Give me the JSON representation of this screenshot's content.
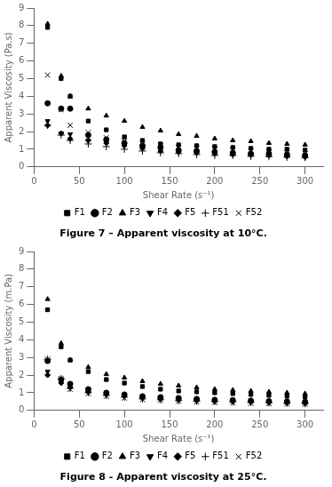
{
  "chart_data": [
    {
      "type": "scatter",
      "title": "Figure 7 – Apparent viscosity at 10°C.",
      "x_label": "Shear Rate (s⁻¹)",
      "y_label": "Apparent Viscosity (Pa.s)",
      "xlim": [
        0,
        320
      ],
      "xticks": [
        0,
        50,
        100,
        150,
        200,
        250,
        300
      ],
      "ylim": [
        0,
        9
      ],
      "yticks": [
        0,
        1,
        2,
        3,
        4,
        5,
        6,
        7,
        8,
        9
      ],
      "grid": false,
      "legend": "bottom",
      "x": [
        15,
        30,
        40,
        60,
        80,
        100,
        120,
        140,
        160,
        180,
        200,
        220,
        240,
        260,
        280,
        300
      ],
      "series": [
        {
          "name": "F1",
          "color": "#000000",
          "marker": "square",
          "values": [
            7.9,
            5.0,
            4.0,
            2.6,
            2.1,
            1.7,
            1.5,
            1.3,
            1.25,
            1.2,
            1.15,
            1.1,
            1.05,
            1.0,
            1.0,
            0.95
          ]
        },
        {
          "name": "F2",
          "color": "#000000",
          "marker": "circle",
          "values": [
            3.6,
            3.3,
            3.3,
            1.8,
            1.55,
            1.35,
            1.2,
            1.1,
            0.95,
            0.9,
            0.85,
            0.8,
            0.75,
            0.75,
            0.7,
            0.65
          ]
        },
        {
          "name": "F3",
          "color": "#000000",
          "marker": "triangle_up",
          "values": [
            8.1,
            5.15,
            4.0,
            3.3,
            2.9,
            2.6,
            2.25,
            2.05,
            1.85,
            1.75,
            1.6,
            1.5,
            1.45,
            1.35,
            1.3,
            1.25
          ]
        },
        {
          "name": "F4",
          "color": "#000000",
          "marker": "triangle_down",
          "values": [
            2.6,
            1.9,
            1.85,
            1.5,
            1.4,
            1.25,
            1.1,
            1.0,
            0.9,
            0.85,
            0.8,
            0.75,
            0.7,
            0.65,
            0.65,
            0.6
          ]
        },
        {
          "name": "F5",
          "color": "#000000",
          "marker": "diamond",
          "values": [
            2.35,
            1.9,
            1.6,
            1.5,
            1.35,
            1.2,
            1.05,
            0.9,
            0.85,
            0.8,
            0.75,
            0.7,
            0.68,
            0.65,
            0.6,
            0.55
          ]
        },
        {
          "name": "F51",
          "color": "#000000",
          "marker": "plus",
          "values": [
            2.35,
            1.8,
            1.5,
            1.3,
            1.15,
            1.0,
            0.9,
            0.8,
            0.75,
            0.7,
            0.65,
            0.65,
            0.6,
            0.58,
            0.55,
            0.53
          ]
        },
        {
          "name": "F52",
          "color": "#000000",
          "marker": "x",
          "values": [
            5.2,
            3.25,
            2.35,
            1.95,
            1.65,
            1.45,
            1.3,
            1.2,
            1.1,
            1.05,
            1.0,
            0.95,
            0.9,
            0.85,
            0.8,
            0.75
          ]
        }
      ]
    },
    {
      "type": "scatter",
      "title": "Figure 8 - Apparent viscosity at 25°C.",
      "x_label": "Shear Rate (s⁻¹)",
      "y_label": "Apparent Viscosity (m.Pa)",
      "xlim": [
        0,
        320
      ],
      "xticks": [
        0,
        50,
        100,
        150,
        200,
        250,
        300
      ],
      "ylim": [
        0,
        9
      ],
      "yticks": [
        0,
        1,
        2,
        3,
        4,
        5,
        6,
        7,
        8,
        9
      ],
      "grid": false,
      "legend": "bottom",
      "x": [
        15,
        30,
        40,
        60,
        80,
        100,
        120,
        140,
        160,
        180,
        200,
        220,
        240,
        260,
        280,
        300
      ],
      "series": [
        {
          "name": "F1",
          "color": "#000000",
          "marker": "square",
          "values": [
            5.7,
            3.6,
            2.85,
            2.2,
            1.75,
            1.55,
            1.35,
            1.2,
            1.1,
            1.05,
            1.0,
            0.95,
            0.9,
            0.85,
            0.8,
            0.75
          ]
        },
        {
          "name": "F2",
          "color": "#000000",
          "marker": "circle",
          "values": [
            2.8,
            1.75,
            1.5,
            1.2,
            1.0,
            0.9,
            0.8,
            0.75,
            0.7,
            0.65,
            0.6,
            0.58,
            0.55,
            0.52,
            0.5,
            0.48
          ]
        },
        {
          "name": "F3",
          "color": "#000000",
          "marker": "triangle_up",
          "values": [
            6.3,
            3.8,
            2.85,
            2.45,
            2.05,
            1.85,
            1.65,
            1.5,
            1.4,
            1.3,
            1.2,
            1.15,
            1.1,
            1.05,
            1.0,
            0.95
          ]
        },
        {
          "name": "F4",
          "color": "#000000",
          "marker": "triangle_down",
          "values": [
            2.2,
            1.6,
            1.35,
            1.1,
            0.95,
            0.85,
            0.75,
            0.7,
            0.65,
            0.6,
            0.55,
            0.52,
            0.5,
            0.48,
            0.45,
            0.43
          ]
        },
        {
          "name": "F5",
          "color": "#000000",
          "marker": "diamond",
          "values": [
            2.0,
            1.55,
            1.3,
            1.05,
            0.9,
            0.8,
            0.7,
            0.65,
            0.6,
            0.55,
            0.52,
            0.5,
            0.48,
            0.45,
            0.43,
            0.4
          ]
        },
        {
          "name": "F51",
          "color": "#000000",
          "marker": "plus",
          "values": [
            2.9,
            1.8,
            1.25,
            1.0,
            0.85,
            0.75,
            0.65,
            0.6,
            0.55,
            0.52,
            0.5,
            0.48,
            0.45,
            0.43,
            0.4,
            0.38
          ]
        },
        {
          "name": "F52",
          "color": "#000000",
          "marker": "x",
          "values": [
            2.9,
            1.8,
            1.2,
            0.95,
            0.8,
            0.7,
            0.62,
            0.57,
            0.52,
            0.48,
            0.45,
            0.42,
            0.4,
            0.38,
            0.37,
            0.35
          ]
        }
      ]
    }
  ]
}
